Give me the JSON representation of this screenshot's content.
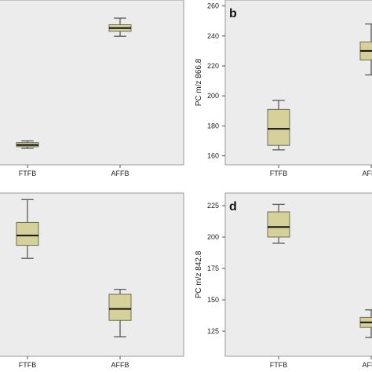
{
  "colors": {
    "box_fill": "#d6d09a",
    "box_stroke": "#6e6b52",
    "median": "#111111",
    "whisker": "#5a5a5a",
    "panel_bg": "#ececec"
  },
  "chart_data": [
    {
      "panel": "",
      "type": "boxplot",
      "categories": [
        "FTFB",
        "AFFB"
      ],
      "ylabel": "",
      "ylim": [
        0,
        100
      ],
      "yticks": [],
      "boxes": [
        {
          "category": "FTFB",
          "min": 10,
          "q1": 11,
          "median": 12,
          "q3": 13.5,
          "max": 14.5
        },
        {
          "category": "AFFB",
          "min": 78,
          "q1": 81,
          "median": 83,
          "q3": 85,
          "max": 89
        }
      ]
    },
    {
      "panel": "b",
      "type": "boxplot",
      "categories": [
        "FTFB",
        "AFFB"
      ],
      "ylabel": "PC m/z 866.8",
      "ylim": [
        154,
        264
      ],
      "yticks": [
        160,
        180,
        200,
        220,
        240,
        260
      ],
      "boxes": [
        {
          "category": "FTFB",
          "min": 164,
          "q1": 167,
          "median": 178,
          "q3": 191,
          "max": 197
        },
        {
          "category": "AFFB",
          "min": 214,
          "q1": 224,
          "median": 230,
          "q3": 236,
          "max": 248
        }
      ]
    },
    {
      "panel": "",
      "type": "boxplot",
      "categories": [
        "FTFB",
        "AFFB"
      ],
      "ylabel": "",
      "ylim": [
        0,
        100
      ],
      "yticks": [],
      "boxes": [
        {
          "category": "FTFB",
          "min": 60,
          "q1": 68,
          "median": 74,
          "q3": 82,
          "max": 96
        },
        {
          "category": "AFFB",
          "min": 12,
          "q1": 22,
          "median": 29,
          "q3": 38,
          "max": 41
        }
      ]
    },
    {
      "panel": "d",
      "type": "boxplot",
      "categories": [
        "FTFB",
        "AFFB"
      ],
      "ylabel": "PC m/z 842.8",
      "ylim": [
        105,
        235
      ],
      "yticks": [
        125,
        150,
        175,
        200,
        225
      ],
      "boxes": [
        {
          "category": "FTFB",
          "min": 195,
          "q1": 200,
          "median": 208,
          "q3": 220,
          "max": 226
        },
        {
          "category": "AFFB",
          "min": 120,
          "q1": 128,
          "median": 132,
          "q3": 136,
          "max": 142
        }
      ]
    }
  ]
}
